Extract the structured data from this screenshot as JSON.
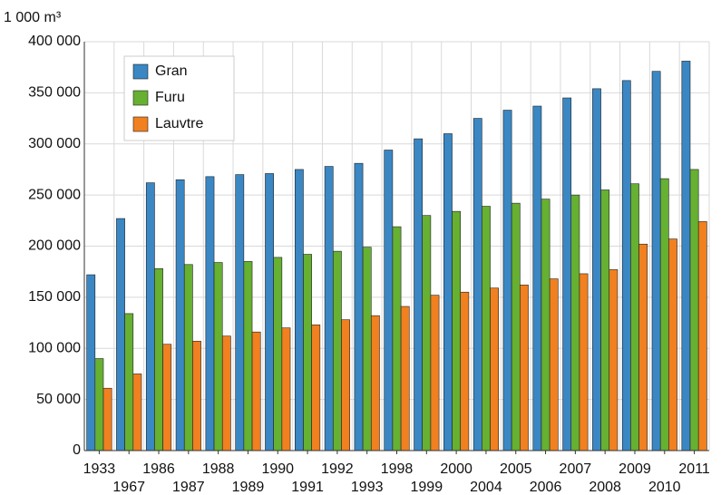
{
  "chart_data": {
    "type": "bar",
    "y_label": "1 000 m³",
    "categories": [
      "1933",
      "1967",
      "1986",
      "1987",
      "1988",
      "1989",
      "1990",
      "1991",
      "1992",
      "1993",
      "1998",
      "1999",
      "2000",
      "2004",
      "2005",
      "2006",
      "2007",
      "2008",
      "2009",
      "2010",
      "2011"
    ],
    "series": [
      {
        "name": "Gran",
        "color": "#3a87c4",
        "values": [
          172000,
          227000,
          262000,
          265000,
          268000,
          270000,
          271000,
          275000,
          278000,
          281000,
          294000,
          305000,
          310000,
          325000,
          333000,
          337000,
          345000,
          354000,
          362000,
          371000,
          381000
        ]
      },
      {
        "name": "Furu",
        "color": "#66b032",
        "values": [
          90000,
          134000,
          178000,
          182000,
          184000,
          185000,
          189000,
          192000,
          195000,
          199000,
          219000,
          230000,
          234000,
          239000,
          242000,
          246000,
          250000,
          255000,
          261000,
          266000,
          275000
        ]
      },
      {
        "name": "Lauvtre",
        "color": "#f08020",
        "values": [
          61000,
          75000,
          104000,
          107000,
          112000,
          116000,
          120000,
          123000,
          128000,
          132000,
          141000,
          152000,
          155000,
          159000,
          162000,
          168000,
          173000,
          177000,
          202000,
          207000,
          224000
        ]
      }
    ],
    "ylim": [
      0,
      400000
    ],
    "yticks": [
      0,
      {
        "value": 50000,
        "label": "50 000"
      },
      {
        "value": 100000,
        "label": "100 000"
      },
      {
        "value": 150000,
        "label": "150 000"
      },
      {
        "value": 200000,
        "label": "200 000"
      },
      {
        "value": 250000,
        "label": "250 000"
      },
      {
        "value": 300000,
        "label": "300 000"
      },
      {
        "value": 350000,
        "label": "350 000"
      },
      {
        "value": 400000,
        "label": "400 000"
      }
    ],
    "grid": true,
    "legend": "top-left"
  }
}
